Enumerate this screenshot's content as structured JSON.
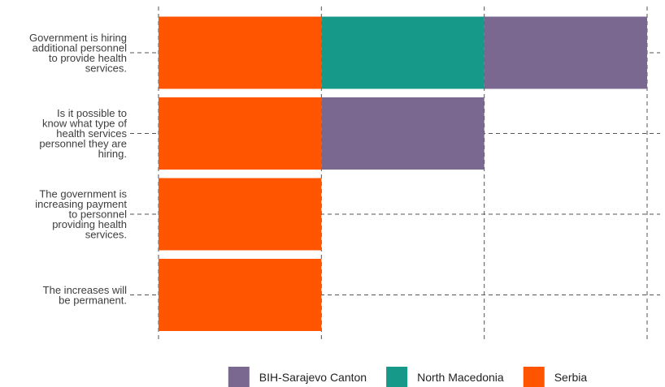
{
  "chart_data": {
    "type": "bar",
    "orientation": "horizontal",
    "stacked": true,
    "categories": [
      "Government is hiring additional personnel to provide health services.",
      "Is it possible to know what type of health services personnel they are hiring.",
      "The government is increasing payment to personnel providing health services.",
      "The increases will be permanent."
    ],
    "category_lines": [
      [
        "Government is hiring",
        "additional personnel",
        "to provide health",
        "services."
      ],
      [
        "Is it possible to",
        "know what type of",
        "health services",
        "personnel they are",
        "hiring."
      ],
      [
        "The government is",
        "increasing payment",
        "to personnel",
        "providing health",
        "services."
      ],
      [
        "The increases will",
        "be permanent."
      ]
    ],
    "series": [
      {
        "name": "Serbia",
        "color": "#FF5500",
        "values": [
          1,
          1,
          1,
          1
        ]
      },
      {
        "name": "North Macedonia",
        "color": "#17998A",
        "values": [
          1,
          0,
          0,
          0
        ]
      },
      {
        "name": "BIH-Sarajevo Canton",
        "color": "#7A6890",
        "values": [
          1,
          1,
          0,
          0
        ]
      }
    ],
    "xlim": [
      0,
      3
    ],
    "grid": true,
    "legend_position": "bottom",
    "legend_order": [
      "BIH-Sarajevo Canton",
      "North Macedonia",
      "Serbia"
    ],
    "title": "",
    "xlabel": "",
    "ylabel": ""
  }
}
